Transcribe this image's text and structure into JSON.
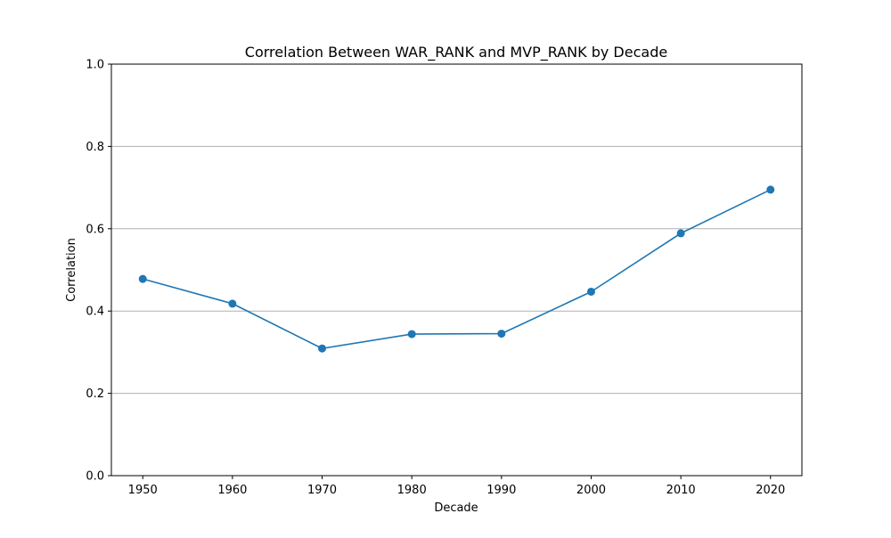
{
  "chart_data": {
    "type": "line",
    "title": "Correlation Between WAR_RANK and MVP_RANK by Decade",
    "xlabel": "Decade",
    "ylabel": "Correlation",
    "x": [
      1950,
      1960,
      1970,
      1980,
      1990,
      2000,
      2010,
      2020
    ],
    "series": [
      {
        "values": [
          0.478,
          0.418,
          0.309,
          0.344,
          0.345,
          0.447,
          0.589,
          0.695
        ],
        "color": "#1f77b4",
        "marker": "circle"
      }
    ],
    "xticks": [
      "1950",
      "1960",
      "1970",
      "1980",
      "1990",
      "2000",
      "2010",
      "2020"
    ],
    "yticks": [
      "0.0",
      "0.2",
      "0.4",
      "0.6",
      "0.8",
      "1.0"
    ],
    "ytick_values": [
      0.0,
      0.2,
      0.4,
      0.6,
      0.8,
      1.0
    ],
    "xlim": [
      1946.5,
      2023.5
    ],
    "ylim": [
      0,
      1
    ],
    "grid": "y-axis",
    "grid_color": "#b0b0b0",
    "legend": "none"
  }
}
